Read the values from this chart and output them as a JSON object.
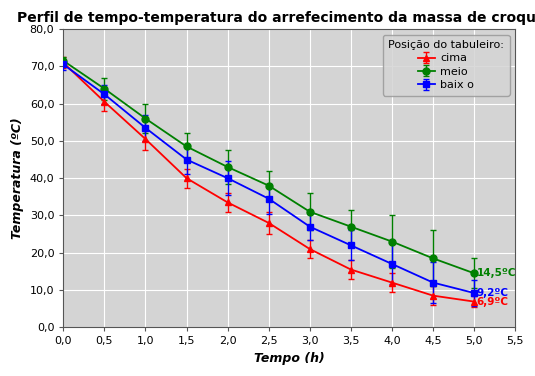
{
  "title": "Perfil de tempo-temperatura do arrefecimento da massa de croquete",
  "xlabel": "Tempo (h)",
  "ylabel": "Temperatura (ºC)",
  "xlim": [
    0.0,
    5.5
  ],
  "ylim": [
    0.0,
    80.0
  ],
  "xticks": [
    0.0,
    0.5,
    1.0,
    1.5,
    2.0,
    2.5,
    3.0,
    3.5,
    4.0,
    4.5,
    5.0,
    5.5
  ],
  "yticks": [
    0.0,
    10.0,
    20.0,
    30.0,
    40.0,
    50.0,
    60.0,
    70.0,
    80.0
  ],
  "x": [
    0.0,
    0.5,
    1.0,
    1.5,
    2.0,
    2.5,
    3.0,
    3.5,
    4.0,
    4.5,
    5.0
  ],
  "cima_y": [
    71.0,
    60.5,
    50.5,
    40.0,
    33.5,
    28.0,
    21.0,
    15.5,
    12.0,
    8.5,
    6.9
  ],
  "cima_err": [
    1.5,
    2.5,
    3.0,
    2.5,
    2.5,
    3.0,
    2.5,
    2.5,
    2.5,
    2.5,
    1.5
  ],
  "meio_y": [
    71.5,
    64.0,
    56.0,
    48.5,
    43.0,
    38.0,
    31.0,
    27.0,
    23.0,
    18.5,
    14.5
  ],
  "meio_err": [
    1.0,
    3.0,
    4.0,
    3.5,
    4.5,
    4.0,
    5.0,
    4.5,
    7.0,
    7.5,
    4.0
  ],
  "baixo_y": [
    70.5,
    62.5,
    53.5,
    45.0,
    40.0,
    34.5,
    27.0,
    22.0,
    17.0,
    12.0,
    9.2
  ],
  "baixo_err": [
    1.5,
    2.5,
    3.5,
    4.0,
    4.5,
    4.0,
    3.5,
    4.0,
    5.5,
    5.5,
    3.5
  ],
  "color_cima": "#ff0000",
  "color_meio": "#008000",
  "color_baixo": "#0000ff",
  "legend_title": "Posição do tabuleiro:",
  "label_cima_end": "6,9ºC",
  "label_meio_end": "14,5ºC",
  "label_baixo_end": "9,2ºC",
  "fig_bg_color": "#ffffff",
  "plot_bg_color": "#d4d4d4",
  "grid_color": "#ffffff",
  "title_fontsize": 10,
  "axis_label_fontsize": 9,
  "tick_fontsize": 8,
  "legend_fontsize": 8
}
